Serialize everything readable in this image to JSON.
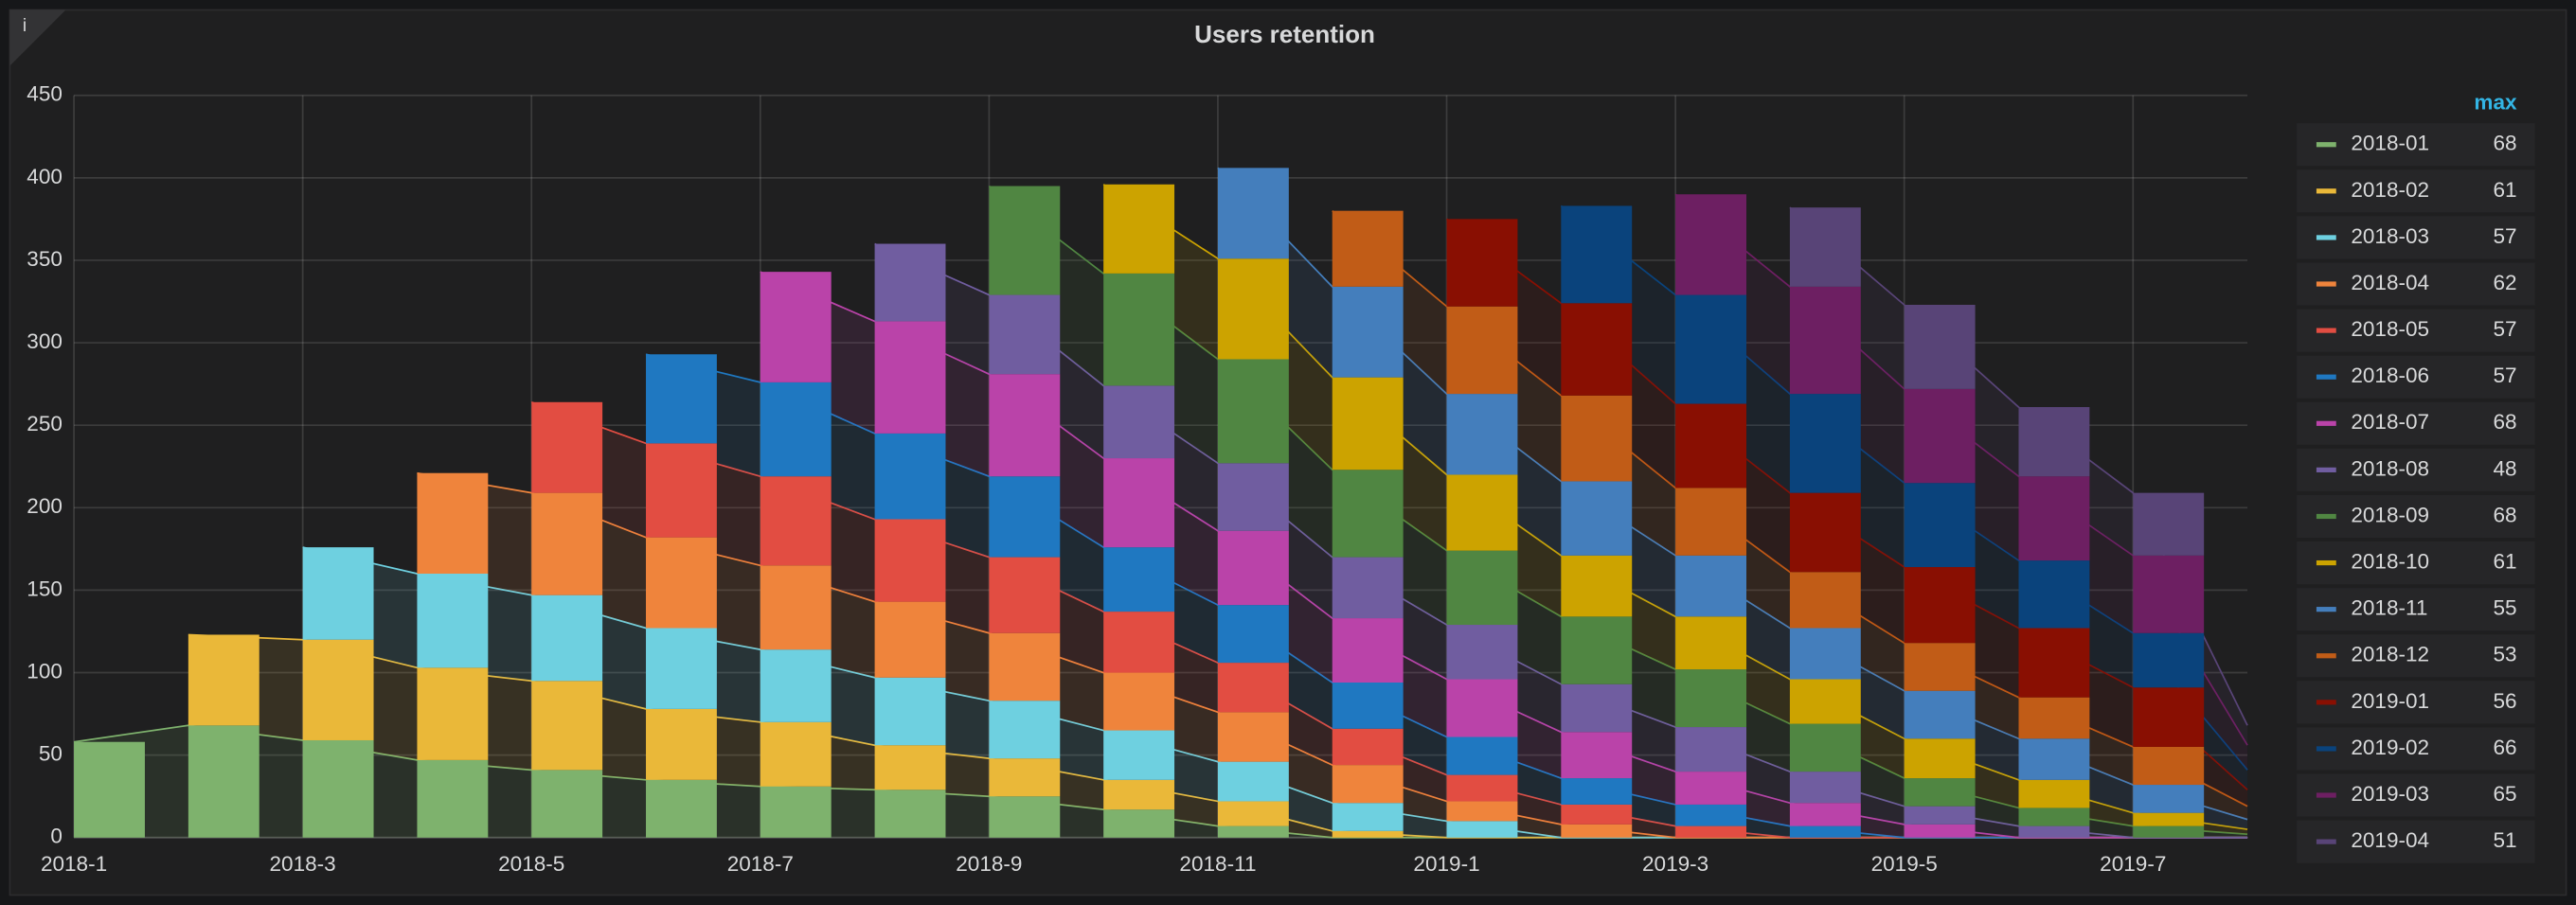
{
  "panel_info": "i",
  "chart_data": {
    "type": "bar",
    "stacked": true,
    "title": "Users retention",
    "categories": [
      "2018-1",
      null,
      "2018-3",
      null,
      "2018-5",
      null,
      "2018-7",
      null,
      "2018-9",
      null,
      "2018-11",
      null,
      "2019-1",
      null,
      "2019-3",
      null,
      "2019-5",
      null,
      "2019-7",
      null
    ],
    "ylim": [
      0,
      450
    ],
    "yticks": [
      0,
      50,
      100,
      150,
      200,
      250,
      300,
      350,
      400,
      450
    ],
    "grid": true,
    "legend_position": "right",
    "legend_header": "max",
    "series": [
      {
        "name": "2018-01",
        "color": "#7eb26d",
        "max": 68,
        "values": [
          58,
          68,
          59,
          47,
          41,
          35,
          31,
          29,
          25,
          17,
          7,
          0,
          0,
          0,
          0,
          0,
          0,
          0,
          0,
          0
        ]
      },
      {
        "name": "2018-02",
        "color": "#eab839",
        "max": 61,
        "values": [
          null,
          55,
          61,
          56,
          54,
          43,
          39,
          27,
          23,
          18,
          15,
          4,
          0,
          0,
          0,
          0,
          0,
          0,
          0,
          0
        ]
      },
      {
        "name": "2018-03",
        "color": "#6ed0e0",
        "max": 57,
        "values": [
          null,
          null,
          56,
          57,
          52,
          49,
          44,
          41,
          35,
          30,
          24,
          17,
          10,
          0,
          0,
          0,
          0,
          0,
          0,
          0
        ]
      },
      {
        "name": "2018-04",
        "color": "#ef843c",
        "max": 62,
        "values": [
          null,
          null,
          null,
          61,
          62,
          55,
          51,
          46,
          41,
          35,
          30,
          23,
          12,
          8,
          0,
          0,
          0,
          0,
          0,
          0
        ]
      },
      {
        "name": "2018-05",
        "color": "#e24d42",
        "max": 57,
        "values": [
          null,
          null,
          null,
          null,
          55,
          57,
          54,
          50,
          46,
          37,
          30,
          22,
          16,
          12,
          7,
          0,
          0,
          0,
          0,
          0
        ]
      },
      {
        "name": "2018-06",
        "color": "#1f78c1",
        "max": 57,
        "values": [
          null,
          null,
          null,
          null,
          null,
          54,
          57,
          52,
          49,
          39,
          35,
          28,
          23,
          16,
          13,
          7,
          0,
          0,
          0,
          0
        ]
      },
      {
        "name": "2018-07",
        "color": "#ba43a9",
        "max": 68,
        "values": [
          null,
          null,
          null,
          null,
          null,
          null,
          67,
          68,
          62,
          54,
          45,
          39,
          35,
          28,
          20,
          14,
          8,
          0,
          0,
          0
        ]
      },
      {
        "name": "2018-08",
        "color": "#705da0",
        "max": 48,
        "values": [
          null,
          null,
          null,
          null,
          null,
          null,
          null,
          47,
          48,
          44,
          41,
          37,
          33,
          29,
          27,
          19,
          11,
          7,
          0,
          0
        ]
      },
      {
        "name": "2018-09",
        "color": "#508642",
        "max": 68,
        "values": [
          null,
          null,
          null,
          null,
          null,
          null,
          null,
          null,
          66,
          68,
          63,
          53,
          45,
          41,
          35,
          29,
          17,
          11,
          7,
          2
        ]
      },
      {
        "name": "2018-10",
        "color": "#cca300",
        "max": 61,
        "values": [
          null,
          null,
          null,
          null,
          null,
          null,
          null,
          null,
          null,
          54,
          61,
          56,
          46,
          37,
          32,
          27,
          24,
          17,
          8,
          3
        ]
      },
      {
        "name": "2018-11",
        "color": "#447ebc",
        "max": 55,
        "values": [
          null,
          null,
          null,
          null,
          null,
          null,
          null,
          null,
          null,
          null,
          55,
          55,
          49,
          45,
          37,
          31,
          29,
          25,
          17,
          6
        ]
      },
      {
        "name": "2018-12",
        "color": "#c15c17",
        "max": 53,
        "values": [
          null,
          null,
          null,
          null,
          null,
          null,
          null,
          null,
          null,
          null,
          null,
          46,
          53,
          52,
          41,
          34,
          29,
          25,
          23,
          8
        ]
      },
      {
        "name": "2019-01",
        "color": "#890f02",
        "max": 56,
        "values": [
          null,
          null,
          null,
          null,
          null,
          null,
          null,
          null,
          null,
          null,
          null,
          null,
          53,
          56,
          51,
          48,
          46,
          42,
          36,
          10
        ]
      },
      {
        "name": "2019-02",
        "color": "#0a437c",
        "max": 66,
        "values": [
          null,
          null,
          null,
          null,
          null,
          null,
          null,
          null,
          null,
          null,
          null,
          null,
          null,
          59,
          66,
          60,
          51,
          41,
          33,
          12
        ]
      },
      {
        "name": "2019-03",
        "color": "#6d1f62",
        "max": 65,
        "values": [
          null,
          null,
          null,
          null,
          null,
          null,
          null,
          null,
          null,
          null,
          null,
          null,
          null,
          null,
          61,
          65,
          57,
          51,
          47,
          15
        ]
      },
      {
        "name": "2019-04",
        "color": "#584477",
        "max": 51,
        "values": [
          null,
          null,
          null,
          null,
          null,
          null,
          null,
          null,
          null,
          null,
          null,
          null,
          null,
          null,
          null,
          48,
          51,
          42,
          38,
          12
        ]
      }
    ]
  }
}
